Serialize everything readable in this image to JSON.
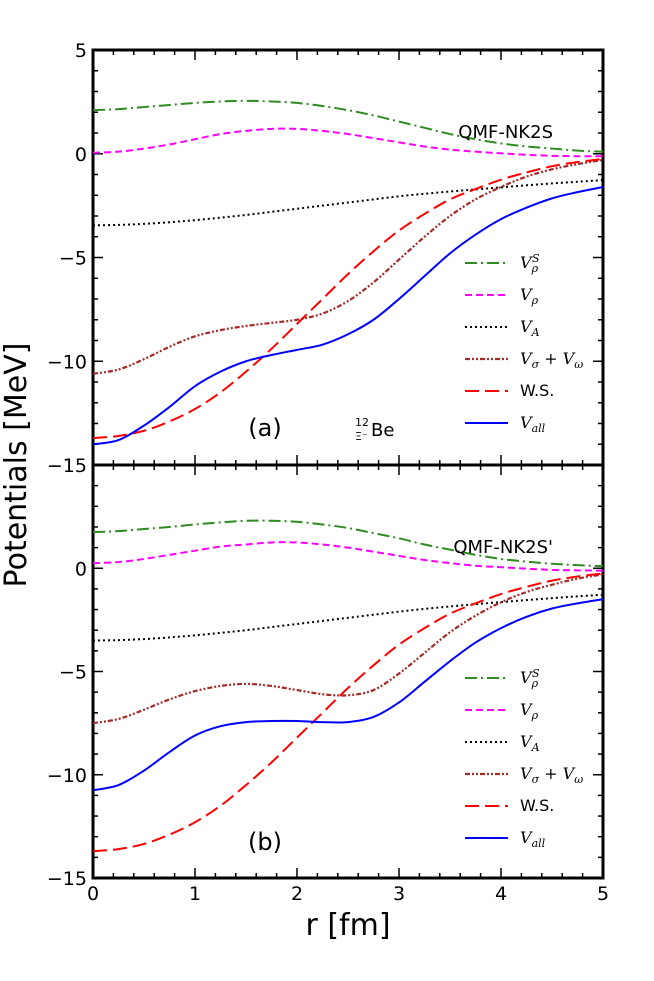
{
  "chart_data": {
    "type": "line",
    "ylabel": "Potentials [MeV]",
    "xlabel": "r [fm]",
    "xlim": [
      0,
      5
    ],
    "xticks": [
      "0",
      "1",
      "2",
      "3",
      "4",
      "5"
    ],
    "legend_entries": [
      "V_ρ^S",
      "V_ρ",
      "V_A",
      "V_σ + V_ω",
      "W.S.",
      "V_all"
    ],
    "legend_html": [
      "V<tspan baseline-shift=\"-4\" font-size=\"11\">ρ</tspan><tspan dx=\"-6\" baseline-shift=\"super\" font-size=\"11\">S</tspan>",
      "V<tspan baseline-shift=\"-4\" font-size=\"11\">ρ</tspan>",
      "V<tspan baseline-shift=\"-4\" font-size=\"11\">A</tspan>",
      "V<tspan baseline-shift=\"-4\" font-size=\"11\">σ</tspan> + V<tspan baseline-shift=\"-4\" font-size=\"11\">ω</tspan>",
      "W.S.",
      "V<tspan baseline-shift=\"-4\" font-size=\"11\">all</tspan>"
    ],
    "colors": {
      "V_rho_S": "#2e8b20",
      "V_rho": "#ff00ff",
      "V_A": "#000000",
      "V_sigma_omega": "#a52a2a",
      "WS": "#ff0000",
      "V_all": "#0000ff"
    },
    "panels": [
      {
        "tag": "(a)",
        "model": "QMF-NK2S",
        "nucleus_mass": "12",
        "nucleus_hyperon": "Ξ⁻",
        "nucleus_symbol": "Be",
        "ylim": [
          -15,
          5
        ],
        "yticks": [
          "5",
          "0",
          "−5",
          "−10",
          "−15"
        ],
        "x": [
          0,
          0.25,
          0.5,
          0.75,
          1.0,
          1.25,
          1.5,
          1.75,
          2.0,
          2.25,
          2.5,
          2.75,
          3.0,
          3.25,
          3.5,
          3.75,
          4.0,
          4.25,
          4.5,
          4.75,
          5.0
        ],
        "series": [
          {
            "name": "V_rho_S",
            "values": [
              2.1,
              2.15,
              2.25,
              2.35,
              2.45,
              2.52,
              2.55,
              2.52,
              2.45,
              2.3,
              2.1,
              1.85,
              1.55,
              1.25,
              0.95,
              0.7,
              0.5,
              0.35,
              0.25,
              0.15,
              0.1
            ]
          },
          {
            "name": "V_rho",
            "values": [
              0.05,
              0.1,
              0.25,
              0.45,
              0.7,
              0.95,
              1.1,
              1.2,
              1.2,
              1.1,
              0.95,
              0.75,
              0.55,
              0.35,
              0.2,
              0.1,
              0.02,
              -0.05,
              -0.1,
              -0.12,
              -0.12
            ]
          },
          {
            "name": "V_A",
            "values": [
              -3.45,
              -3.43,
              -3.38,
              -3.3,
              -3.2,
              -3.08,
              -2.95,
              -2.8,
              -2.65,
              -2.5,
              -2.35,
              -2.2,
              -2.05,
              -1.93,
              -1.82,
              -1.72,
              -1.62,
              -1.52,
              -1.43,
              -1.35,
              -1.27
            ]
          },
          {
            "name": "V_sigma_omega",
            "values": [
              -10.6,
              -10.4,
              -9.9,
              -9.3,
              -8.8,
              -8.5,
              -8.3,
              -8.15,
              -8.0,
              -7.7,
              -7.1,
              -6.2,
              -5.1,
              -4.0,
              -3.0,
              -2.2,
              -1.6,
              -1.1,
              -0.75,
              -0.5,
              -0.3
            ]
          },
          {
            "name": "WS",
            "values": [
              -13.7,
              -13.6,
              -13.35,
              -12.9,
              -12.3,
              -11.5,
              -10.5,
              -9.4,
              -8.2,
              -7.0,
              -5.8,
              -4.7,
              -3.7,
              -2.9,
              -2.2,
              -1.7,
              -1.25,
              -0.9,
              -0.6,
              -0.4,
              -0.25
            ]
          },
          {
            "name": "V_all",
            "values": [
              -14.0,
              -13.8,
              -13.1,
              -12.2,
              -11.2,
              -10.5,
              -10.0,
              -9.7,
              -9.45,
              -9.2,
              -8.7,
              -8.0,
              -7.0,
              -5.9,
              -4.8,
              -3.9,
              -3.15,
              -2.6,
              -2.15,
              -1.85,
              -1.6
            ]
          }
        ]
      },
      {
        "tag": "(b)",
        "model": "QMF-NK2S'",
        "ylim": [
          -15,
          5
        ],
        "yticks": [
          "0",
          "−5",
          "−10",
          "−15"
        ],
        "x": [
          0,
          0.25,
          0.5,
          0.75,
          1.0,
          1.25,
          1.5,
          1.75,
          2.0,
          2.25,
          2.5,
          2.75,
          3.0,
          3.25,
          3.5,
          3.75,
          4.0,
          4.25,
          4.5,
          4.75,
          5.0
        ],
        "series": [
          {
            "name": "V_rho_S",
            "values": [
              1.75,
              1.8,
              1.9,
              2.0,
              2.12,
              2.22,
              2.3,
              2.3,
              2.25,
              2.12,
              1.95,
              1.7,
              1.45,
              1.15,
              0.9,
              0.65,
              0.45,
              0.32,
              0.22,
              0.15,
              0.1
            ]
          },
          {
            "name": "V_rho",
            "values": [
              0.25,
              0.3,
              0.45,
              0.65,
              0.85,
              1.05,
              1.15,
              1.25,
              1.25,
              1.15,
              1.0,
              0.8,
              0.6,
              0.4,
              0.25,
              0.12,
              0.05,
              -0.02,
              -0.08,
              -0.1,
              -0.12
            ]
          },
          {
            "name": "V_A",
            "values": [
              -3.5,
              -3.48,
              -3.43,
              -3.35,
              -3.25,
              -3.13,
              -3.0,
              -2.85,
              -2.7,
              -2.55,
              -2.4,
              -2.25,
              -2.1,
              -1.97,
              -1.85,
              -1.74,
              -1.64,
              -1.54,
              -1.45,
              -1.36,
              -1.28
            ]
          },
          {
            "name": "V_sigma_omega",
            "values": [
              -7.5,
              -7.3,
              -6.85,
              -6.35,
              -5.95,
              -5.7,
              -5.6,
              -5.7,
              -5.9,
              -6.1,
              -6.15,
              -5.9,
              -5.1,
              -4.1,
              -3.1,
              -2.3,
              -1.65,
              -1.15,
              -0.8,
              -0.5,
              -0.3
            ]
          },
          {
            "name": "WS",
            "values": [
              -13.7,
              -13.6,
              -13.35,
              -12.9,
              -12.3,
              -11.5,
              -10.5,
              -9.4,
              -8.2,
              -7.0,
              -5.8,
              -4.7,
              -3.7,
              -2.9,
              -2.2,
              -1.7,
              -1.25,
              -0.9,
              -0.6,
              -0.4,
              -0.25
            ]
          },
          {
            "name": "V_all",
            "values": [
              -10.75,
              -10.5,
              -9.8,
              -8.9,
              -8.1,
              -7.65,
              -7.45,
              -7.4,
              -7.4,
              -7.45,
              -7.45,
              -7.2,
              -6.5,
              -5.5,
              -4.5,
              -3.6,
              -2.9,
              -2.35,
              -1.95,
              -1.7,
              -1.5
            ]
          }
        ]
      }
    ]
  }
}
